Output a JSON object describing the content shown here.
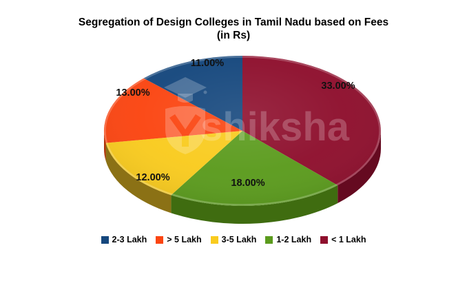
{
  "title": {
    "line1": "Segregation of Design Colleges in Tamil Nadu based on Fees",
    "line2": "(in Rs)"
  },
  "watermark": {
    "text": "shiksha"
  },
  "chart_data": {
    "type": "pie",
    "title": "Segregation of Design Colleges in Tamil Nadu based on Fees (in Rs)",
    "style": "3d-pie",
    "labels_format": "percent-2dp",
    "legend_position": "bottom",
    "slices": [
      {
        "label": "< 1 Lakh",
        "value": 33.0,
        "display": "33.00%",
        "color": "#8e0f2d",
        "side_color": "#650a20"
      },
      {
        "label": "1-2 Lakh",
        "value": 18.0,
        "display": "18.00%",
        "color": "#5b9b1d",
        "side_color": "#3f6c10"
      },
      {
        "label": "3-5 Lakh",
        "value": 12.0,
        "display": "12.00%",
        "color": "#f9cb1e",
        "side_color": "#8b7115"
      },
      {
        "label": "> 5 Lakh",
        "value": 13.0,
        "display": "13.00%",
        "color": "#fb4511",
        "side_color": "#b03208"
      },
      {
        "label": "2-3 Lakh",
        "value": 11.0,
        "display": "11.00%",
        "color": "#15477d",
        "side_color": "#0e3058"
      }
    ],
    "legend": [
      {
        "label": "2-3 Lakh",
        "color": "#15477d"
      },
      {
        "label": "> 5 Lakh",
        "color": "#fb4511"
      },
      {
        "label": "3-5 Lakh",
        "color": "#f9cb1e"
      },
      {
        "label": "1-2 Lakh",
        "color": "#5b9b1d"
      },
      {
        "label": "< 1 Lakh",
        "color": "#8e0f2d"
      }
    ]
  }
}
